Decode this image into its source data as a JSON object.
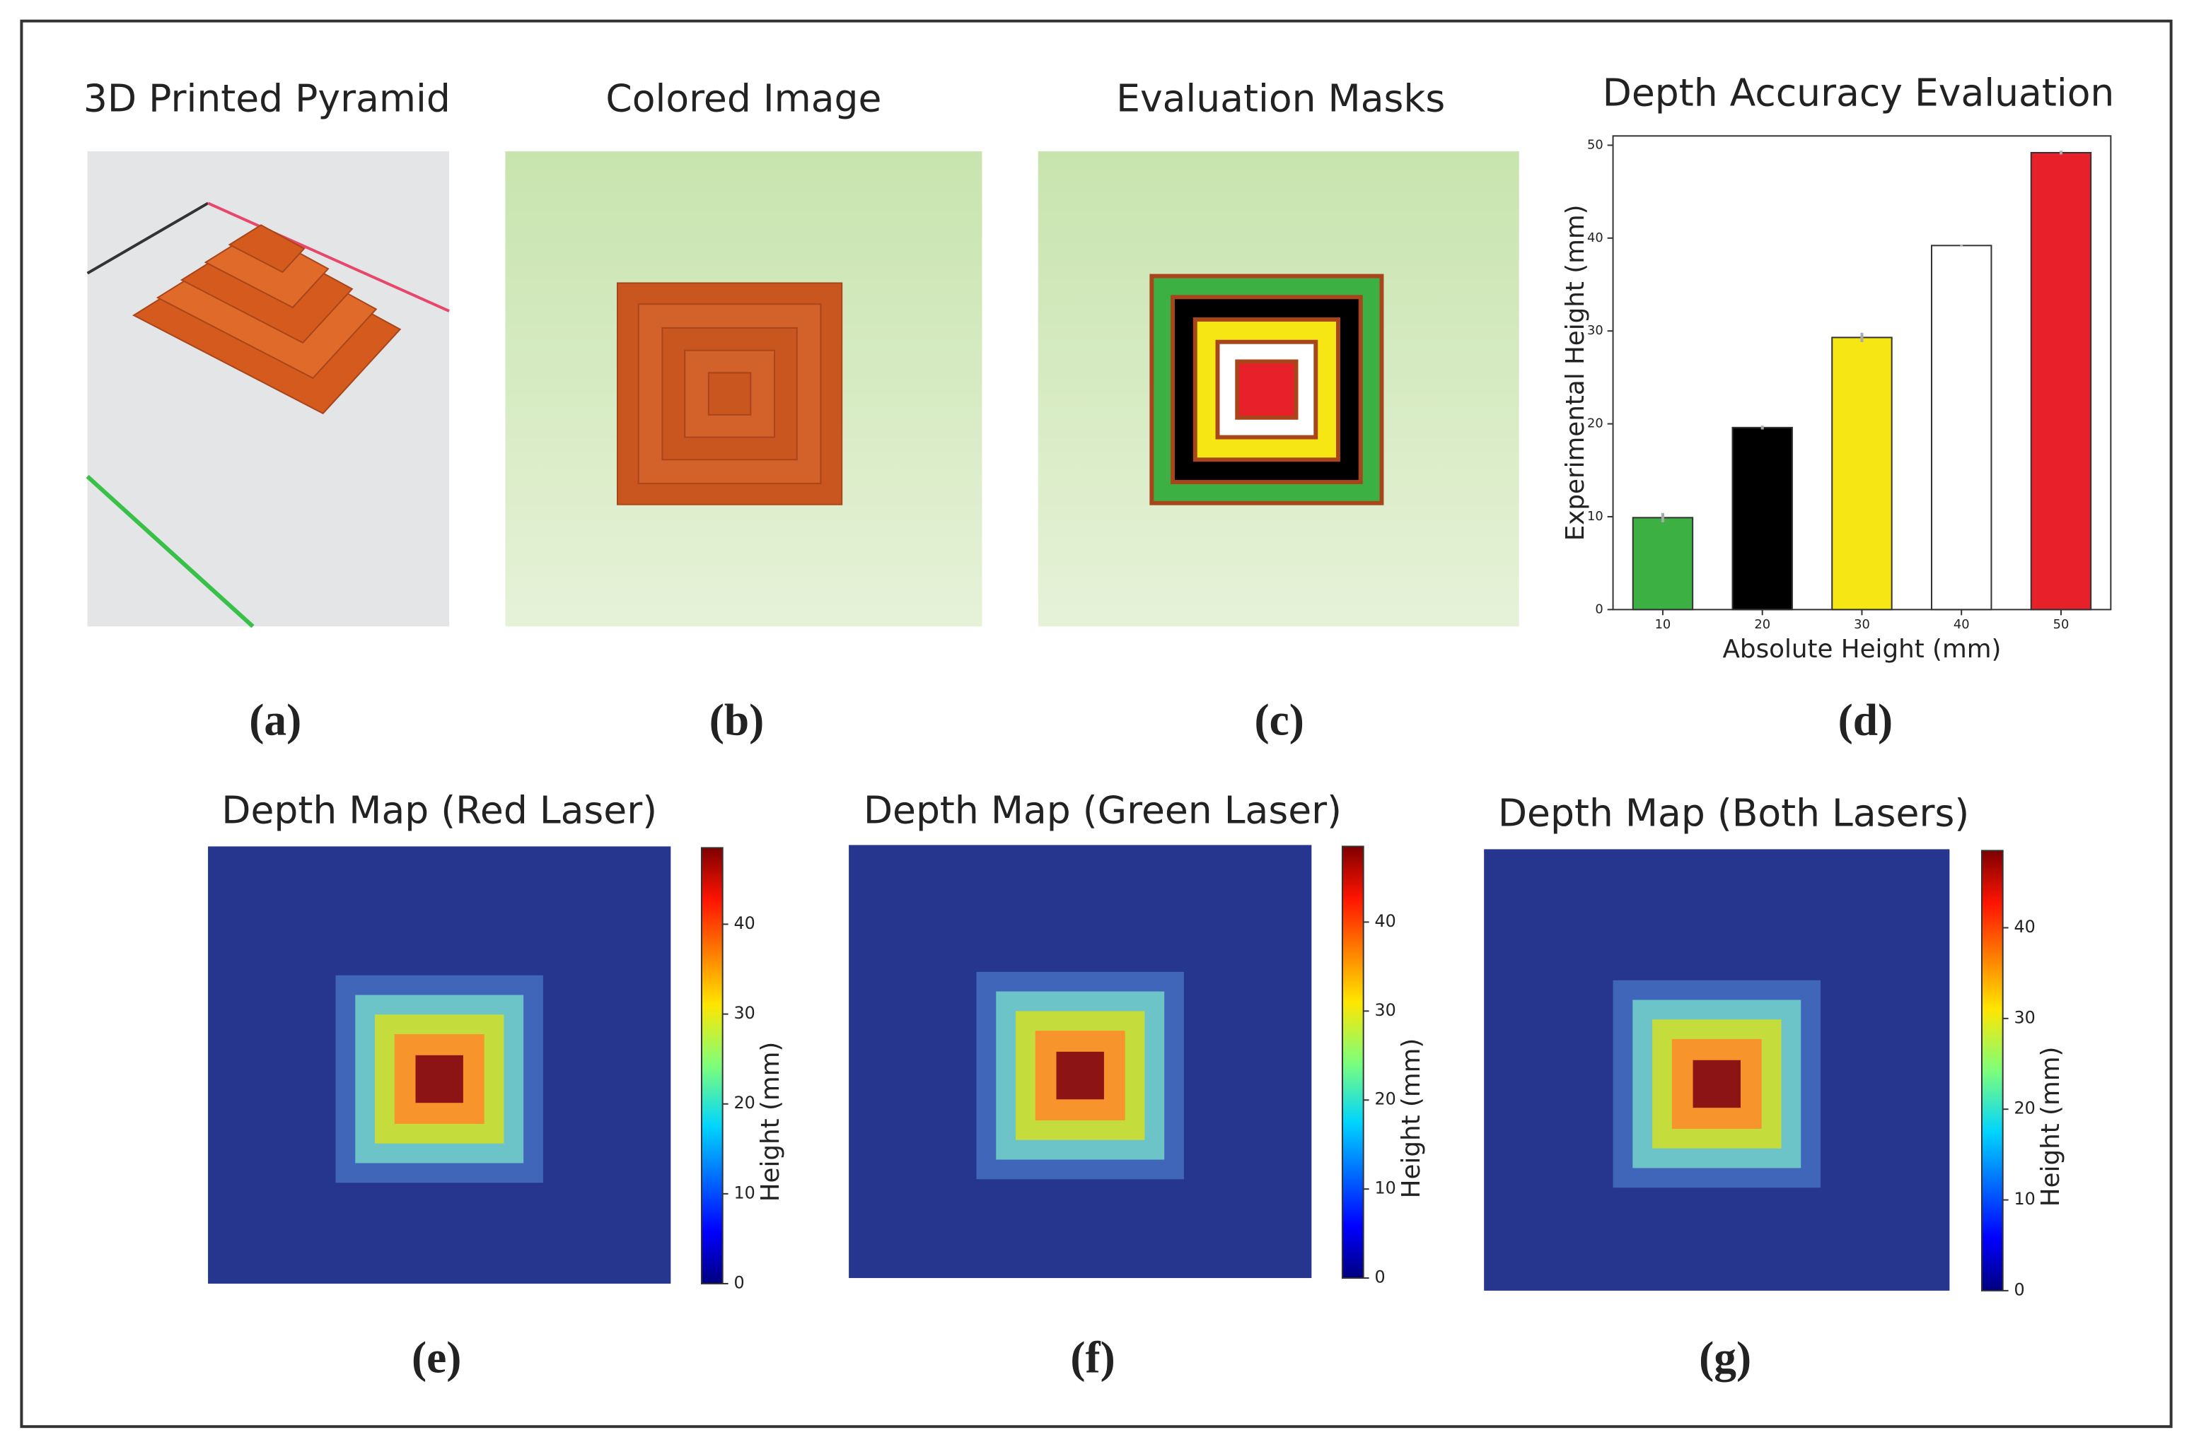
{
  "panels": [
    {
      "title": "3D Printed Pyramid",
      "label": "(a)"
    },
    {
      "title": "Colored Image",
      "label": "(b)"
    },
    {
      "title": "Evaluation Masks",
      "label": "(c)"
    },
    {
      "title": "Depth Accuracy Evaluation",
      "label": "(d)"
    },
    {
      "title": "Depth Map (Red Laser)",
      "label": "(e)"
    },
    {
      "title": "Depth Map (Green Laser)",
      "label": "(f)"
    },
    {
      "title": "Depth Map (Both Lasers)",
      "label": "(g)"
    }
  ],
  "chart_data": [
    {
      "type": "bar",
      "title": "Depth Accuracy Evaluation",
      "x_label": "Absolute Height (mm)",
      "y_label": "Experimental Height (mm)",
      "categories": [
        "10",
        "20",
        "30",
        "40",
        "50"
      ],
      "values": [
        9.9,
        19.6,
        29.3,
        39.2,
        49.2
      ],
      "errors": [
        0.5,
        0.2,
        0.5,
        0.1,
        0.2
      ],
      "colors": [
        "#3cb043",
        "#000000",
        "#f5e614",
        "#ffffff",
        "#e8202a"
      ],
      "ylim": [
        0,
        51
      ],
      "yticks": [
        0,
        10,
        20,
        30,
        40,
        50
      ],
      "grid": false
    },
    {
      "type": "colorbar",
      "label": "Height (mm)",
      "ylim": [
        0,
        48.5
      ],
      "yticks": [
        0,
        10,
        20,
        30,
        40
      ]
    },
    {
      "type": "colorbar",
      "label": "Height (mm)",
      "ylim": [
        0,
        48.5
      ],
      "yticks": [
        0,
        10,
        20,
        30,
        40
      ]
    },
    {
      "type": "colorbar",
      "label": "Height (mm)",
      "ylim": [
        0,
        48.5
      ],
      "yticks": [
        0,
        10,
        20,
        30,
        40
      ]
    }
  ]
}
